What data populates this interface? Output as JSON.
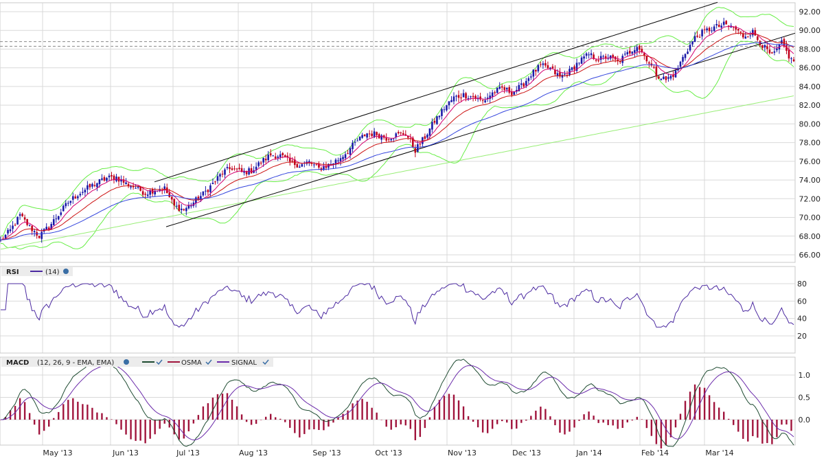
{
  "colors": {
    "grid": "#d9d9d9",
    "frame": "#c8c8c8",
    "up_candle": "#1a1aa8",
    "down_candle": "#c0001a",
    "ema_fast": "#d4006f",
    "ema_mid": "#cc1111",
    "ema_slow": "#3344dd",
    "bollinger": "#66ee44",
    "sma_long": "#99ee77",
    "channel": "#000000",
    "rsi_line": "#4a28a0",
    "macd_line": "#1d4a30",
    "signal_line": "#6a2aaa",
    "osma_bars": "#a0143c"
  },
  "price_panel": {
    "y_ticks": [
      "92.00",
      "90.00",
      "88.00",
      "86.00",
      "84.00",
      "82.00",
      "80.00",
      "78.00",
      "76.00",
      "74.00",
      "72.00",
      "70.00",
      "68.00",
      "66.00"
    ],
    "last_price_guides": [
      88.8,
      88.3
    ]
  },
  "rsi_panel": {
    "label": "RSI",
    "param": "(14)",
    "y_ticks": [
      "80",
      "60",
      "40",
      "20"
    ]
  },
  "macd_panel": {
    "label": "MACD",
    "params": "(12, 26, 9 - EMA, EMA)",
    "legend_osma": "OSMA",
    "legend_signal": "SIGNAL",
    "y_ticks": [
      "1.0",
      "0.5",
      "0.0"
    ]
  },
  "x_axis": {
    "labels": [
      "May '13",
      "Jun '13",
      "Jul '13",
      "Aug '13",
      "Sep '13",
      "Oct '13",
      "Nov '13",
      "Dec '13",
      "Jan '14",
      "Feb '14",
      "Mar '14"
    ]
  },
  "chart_data": {
    "type": "candlestick",
    "x_range": [
      "Apr 2013",
      "Mar 2014"
    ],
    "ylim": [
      65,
      93
    ],
    "price_anchors": [
      [
        0,
        67.5
      ],
      [
        4,
        68.6
      ],
      [
        8,
        70.2
      ],
      [
        12,
        69.0
      ],
      [
        16,
        68.0
      ],
      [
        20,
        69.0
      ],
      [
        24,
        70.3
      ],
      [
        28,
        71.6
      ],
      [
        32,
        72.5
      ],
      [
        36,
        73.1
      ],
      [
        40,
        73.7
      ],
      [
        44,
        74.2
      ],
      [
        48,
        74.3
      ],
      [
        52,
        73.6
      ],
      [
        56,
        73.2
      ],
      [
        60,
        72.6
      ],
      [
        64,
        73.0
      ],
      [
        68,
        73.1
      ],
      [
        72,
        71.2
      ],
      [
        76,
        70.8
      ],
      [
        80,
        71.6
      ],
      [
        84,
        72.5
      ],
      [
        88,
        73.6
      ],
      [
        92,
        74.8
      ],
      [
        96,
        75.3
      ],
      [
        100,
        74.8
      ],
      [
        104,
        75.0
      ],
      [
        108,
        75.9
      ],
      [
        112,
        76.7
      ],
      [
        116,
        76.6
      ],
      [
        120,
        75.9
      ],
      [
        124,
        75.6
      ],
      [
        128,
        75.9
      ],
      [
        132,
        75.2
      ],
      [
        136,
        75.6
      ],
      [
        140,
        76.2
      ],
      [
        144,
        77.1
      ],
      [
        148,
        78.2
      ],
      [
        152,
        79.0
      ],
      [
        156,
        78.9
      ],
      [
        160,
        78.5
      ],
      [
        164,
        78.8
      ],
      [
        168,
        79.0
      ],
      [
        172,
        77.2
      ],
      [
        176,
        78.6
      ],
      [
        180,
        80.3
      ],
      [
        184,
        81.7
      ],
      [
        188,
        82.8
      ],
      [
        192,
        83.1
      ],
      [
        196,
        82.9
      ],
      [
        200,
        82.4
      ],
      [
        204,
        83.3
      ],
      [
        208,
        83.8
      ],
      [
        212,
        83.4
      ],
      [
        216,
        84.0
      ],
      [
        220,
        85.3
      ],
      [
        224,
        86.2
      ],
      [
        228,
        85.9
      ],
      [
        232,
        85.0
      ],
      [
        236,
        85.6
      ],
      [
        240,
        86.7
      ],
      [
        244,
        87.4
      ],
      [
        248,
        86.9
      ],
      [
        252,
        87.2
      ],
      [
        256,
        86.6
      ],
      [
        260,
        87.5
      ],
      [
        264,
        88.4
      ],
      [
        268,
        87.0
      ],
      [
        272,
        85.3
      ],
      [
        276,
        84.7
      ],
      [
        280,
        85.5
      ],
      [
        284,
        87.6
      ],
      [
        288,
        89.2
      ],
      [
        292,
        89.9
      ],
      [
        296,
        90.3
      ],
      [
        300,
        90.6
      ],
      [
        304,
        90.3
      ],
      [
        308,
        89.4
      ],
      [
        312,
        89.8
      ],
      [
        316,
        88.4
      ],
      [
        320,
        87.2
      ],
      [
        324,
        88.6
      ],
      [
        328,
        86.8
      ]
    ],
    "count": 330,
    "rsi_range": [
      0,
      100
    ],
    "macd_range": [
      -0.55,
      1.25
    ]
  }
}
